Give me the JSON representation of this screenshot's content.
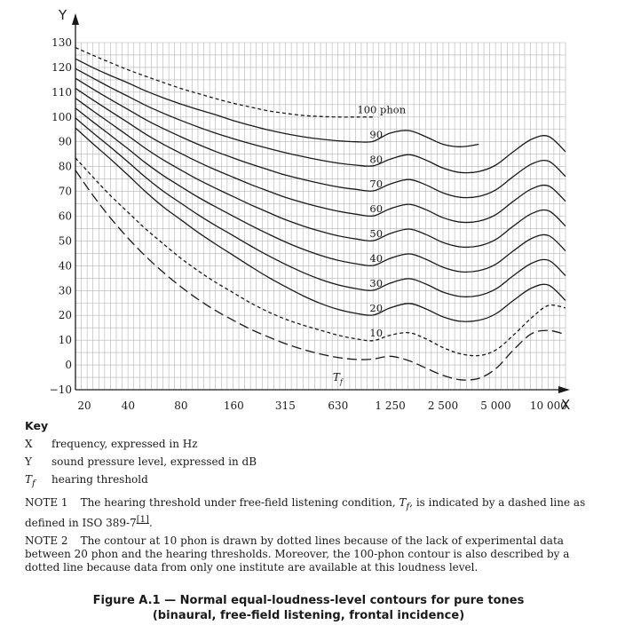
{
  "chart_data": {
    "type": "line",
    "x_axis": {
      "letter": "X",
      "scale": "log",
      "range": [
        20,
        12500
      ],
      "ticks": [
        20,
        40,
        80,
        160,
        315,
        630,
        1250,
        2500,
        5000,
        10000
      ],
      "tick_labels": [
        "20",
        "40",
        "80",
        "160",
        "315",
        "630",
        "1 250",
        "2 500",
        "5 000",
        "10 000"
      ]
    },
    "y_axis": {
      "letter": "Y",
      "range": [
        -10,
        130
      ],
      "ticks": [
        -10,
        0,
        10,
        20,
        30,
        40,
        50,
        60,
        70,
        80,
        90,
        100,
        110,
        120,
        130
      ],
      "tick_labels": [
        "−10",
        "0",
        "10",
        "20",
        "30",
        "40",
        "50",
        "60",
        "70",
        "80",
        "90",
        "100",
        "110",
        "120",
        "130"
      ]
    },
    "grid": true,
    "series": [
      {
        "name": "100 phon",
        "style": "dotted",
        "x": [
          20,
          25,
          31.5,
          40,
          50,
          63,
          80,
          100,
          125,
          160,
          200,
          250,
          315,
          400,
          500,
          630,
          800,
          1000
        ],
        "y": [
          128,
          125,
          122,
          119,
          116.5,
          114,
          111.5,
          109.5,
          107.5,
          105.5,
          104,
          102.5,
          101.5,
          100.6,
          100.2,
          100,
          100,
          100
        ]
      },
      {
        "name": "90",
        "style": "solid",
        "x": [
          20,
          25,
          31.5,
          40,
          50,
          63,
          80,
          100,
          125,
          160,
          200,
          250,
          315,
          400,
          500,
          630,
          800,
          1000,
          1250,
          1600,
          2000,
          2500,
          3150,
          4000
        ],
        "y": [
          123.5,
          120,
          116.8,
          113.7,
          110.6,
          107.8,
          105.2,
          103,
          101,
          98.5,
          96.6,
          94.8,
          93.3,
          92,
          91.1,
          90.4,
          90,
          90.2,
          93.5,
          94.5,
          92,
          89,
          88,
          89
        ]
      },
      {
        "name": "80",
        "style": "solid",
        "x": [
          20,
          25,
          31.5,
          40,
          50,
          63,
          80,
          100,
          125,
          160,
          200,
          250,
          315,
          400,
          500,
          630,
          800,
          1000,
          1250,
          1600,
          2000,
          2500,
          3150,
          4000,
          5000,
          6300,
          8000,
          10000,
          12500
        ],
        "y": [
          119.5,
          115.8,
          112,
          108.3,
          104.8,
          101.6,
          98.6,
          96,
          93.6,
          91.2,
          89.2,
          87.4,
          85.6,
          84,
          82.6,
          81.4,
          80.6,
          80.3,
          83,
          84.8,
          82.6,
          79.4,
          77.6,
          78,
          80.6,
          86,
          91,
          92.2,
          86
        ]
      },
      {
        "name": "70",
        "style": "solid",
        "x": [
          20,
          25,
          31.5,
          40,
          50,
          63,
          80,
          100,
          125,
          160,
          200,
          250,
          315,
          400,
          500,
          630,
          800,
          1000,
          1250,
          1600,
          2000,
          2500,
          3150,
          4000,
          5000,
          6300,
          8000,
          10000,
          12500
        ],
        "y": [
          115.6,
          111.4,
          107.2,
          103,
          99,
          95.4,
          92,
          89,
          86.2,
          83.4,
          81,
          78.8,
          76.6,
          74.8,
          73.2,
          71.8,
          70.8,
          70.2,
          73,
          74.8,
          72.6,
          69.4,
          67.6,
          68,
          70.6,
          76,
          81,
          82.2,
          76
        ]
      },
      {
        "name": "60",
        "style": "solid",
        "x": [
          20,
          25,
          31.5,
          40,
          50,
          63,
          80,
          100,
          125,
          160,
          200,
          250,
          315,
          400,
          500,
          630,
          800,
          1000,
          1250,
          1600,
          2000,
          2500,
          3150,
          4000,
          5000,
          6300,
          8000,
          10000,
          12500
        ],
        "y": [
          111.6,
          107,
          102.4,
          97.7,
          93.2,
          89.1,
          85.3,
          81.9,
          78.8,
          75.6,
          72.8,
          70.2,
          67.6,
          65.4,
          63.6,
          62,
          60.8,
          60.1,
          63,
          64.8,
          62.6,
          59.4,
          57.6,
          58,
          60.6,
          66,
          71,
          72.2,
          66
        ]
      },
      {
        "name": "50",
        "style": "solid",
        "x": [
          20,
          25,
          31.5,
          40,
          50,
          63,
          80,
          100,
          125,
          160,
          200,
          250,
          315,
          400,
          500,
          630,
          800,
          1000,
          1250,
          1600,
          2000,
          2500,
          3150,
          4000,
          5000,
          6300,
          8000,
          10000,
          12500
        ],
        "y": [
          107.6,
          102.6,
          97.6,
          92.4,
          87.4,
          82.8,
          78.6,
          74.8,
          71.4,
          67.8,
          64.6,
          61.6,
          58.6,
          56,
          53.9,
          52.1,
          50.8,
          50.1,
          53,
          54.8,
          52.6,
          49.4,
          47.6,
          48,
          50.6,
          56,
          61,
          62.2,
          56
        ]
      },
      {
        "name": "40",
        "style": "solid",
        "x": [
          20,
          25,
          31.5,
          40,
          50,
          63,
          80,
          100,
          125,
          160,
          200,
          250,
          315,
          400,
          500,
          630,
          800,
          1000,
          1250,
          1600,
          2000,
          2500,
          3150,
          4000,
          5000,
          6300,
          8000,
          10000,
          12500
        ],
        "y": [
          103.6,
          98.2,
          92.8,
          87.1,
          81.6,
          76.5,
          71.9,
          67.7,
          63.9,
          59.9,
          56.3,
          52.9,
          49.6,
          46.6,
          44.2,
          42.2,
          40.8,
          40.1,
          43,
          44.8,
          42.6,
          39.4,
          37.6,
          38,
          40.6,
          46,
          51,
          52.2,
          46
        ]
      },
      {
        "name": "30",
        "style": "solid",
        "x": [
          20,
          25,
          31.5,
          40,
          50,
          63,
          80,
          100,
          125,
          160,
          200,
          250,
          315,
          400,
          500,
          630,
          800,
          1000,
          1250,
          1600,
          2000,
          2500,
          3150,
          4000,
          5000,
          6300,
          8000,
          10000,
          12500
        ],
        "y": [
          99.6,
          93.8,
          88,
          81.8,
          75.8,
          70.2,
          65.2,
          60.6,
          56.4,
          52,
          48,
          44.2,
          40.6,
          37.2,
          34.5,
          32.3,
          30.8,
          30.1,
          33,
          34.8,
          32.6,
          29.4,
          27.6,
          28,
          30.6,
          36,
          41,
          42.2,
          36
        ]
      },
      {
        "name": "20",
        "style": "solid",
        "x": [
          20,
          25,
          31.5,
          40,
          50,
          63,
          80,
          100,
          125,
          160,
          200,
          250,
          315,
          400,
          500,
          630,
          800,
          1000,
          1250,
          1600,
          2000,
          2500,
          3150,
          4000,
          5000,
          6300,
          8000,
          10000,
          12500
        ],
        "y": [
          95.6,
          89.4,
          83.2,
          76.5,
          70,
          63.9,
          58.5,
          53.5,
          48.9,
          44.1,
          39.7,
          35.5,
          31.6,
          27.8,
          24.8,
          22.4,
          20.8,
          20.1,
          23,
          24.8,
          22.6,
          19.4,
          17.6,
          18,
          20.6,
          26,
          31,
          32.2,
          26
        ]
      },
      {
        "name": "10",
        "style": "dotted",
        "x": [
          20,
          25,
          31.5,
          40,
          50,
          63,
          80,
          100,
          125,
          160,
          200,
          250,
          315,
          400,
          500,
          630,
          800,
          1000,
          1250,
          1600,
          2000,
          2500,
          3150,
          4000,
          5000,
          6300,
          8000,
          10000,
          12500
        ],
        "y": [
          83.5,
          76,
          68.5,
          61.5,
          55,
          49,
          43,
          38,
          33.5,
          29,
          25,
          21.5,
          18.5,
          16,
          14,
          12,
          10.5,
          9.8,
          12,
          13,
          10.5,
          7,
          4.5,
          3.8,
          6,
          12,
          19,
          24,
          23
        ]
      },
      {
        "name": "Tf",
        "style": "dashed",
        "x": [
          20,
          25,
          31.5,
          40,
          50,
          63,
          80,
          100,
          125,
          160,
          200,
          250,
          315,
          400,
          500,
          630,
          800,
          1000,
          1250,
          1600,
          2000,
          2500,
          3150,
          4000,
          5000,
          6300,
          8000,
          10000,
          12500
        ],
        "y": [
          78.5,
          68.7,
          59.5,
          51.1,
          44,
          37.5,
          31.5,
          26.5,
          22.1,
          17.9,
          14.4,
          11.4,
          8.6,
          6.2,
          4.4,
          3,
          2.2,
          2.4,
          3.5,
          1.7,
          -1.3,
          -4.2,
          -6,
          -5.4,
          -1.5,
          6,
          12.6,
          13.9,
          12.3
        ]
      }
    ],
    "curve_labels": [
      {
        "text": "100 phon",
        "x": 1000,
        "y": 103
      },
      {
        "text": "90",
        "x": 1000,
        "y": 93
      },
      {
        "text": "80",
        "x": 1000,
        "y": 83
      },
      {
        "text": "70",
        "x": 1000,
        "y": 73
      },
      {
        "text": "60",
        "x": 1000,
        "y": 63
      },
      {
        "text": "50",
        "x": 1000,
        "y": 53
      },
      {
        "text": "40",
        "x": 1000,
        "y": 43
      },
      {
        "text": "30",
        "x": 1000,
        "y": 33
      },
      {
        "text": "20",
        "x": 1000,
        "y": 23
      },
      {
        "text": "10",
        "x": 1000,
        "y": 13
      }
    ],
    "threshold_label": {
      "text": "T",
      "subscript": "f",
      "x": 630,
      "y": -5
    }
  },
  "key": {
    "title": "Key",
    "items": [
      {
        "symbol": "X",
        "desc": "frequency, expressed in Hz"
      },
      {
        "symbol": "Y",
        "desc": "sound pressure level, expressed in dB"
      },
      {
        "symbol": "T",
        "sub": "f",
        "desc": "hearing threshold"
      }
    ]
  },
  "notes": [
    {
      "label": "NOTE 1",
      "text_before": "The hearing threshold under free-field listening condition, ",
      "sym": "T",
      "sub": "f",
      "text_after": ", is indicated by a dashed line as defined in ISO 389-7",
      "ref": "[1]",
      "end": "."
    },
    {
      "label": "NOTE 2",
      "text": "The contour at 10 phon is drawn by dotted lines because of the lack of experimental data between 20 phon and the hearing thresholds. Moreover, the 100-phon contour is also described by a dotted line because data from only one institute are available at this loudness level."
    }
  ],
  "caption": {
    "line1": "Figure A.1 — Normal equal-loudness-level contours for pure tones",
    "line2": "(binaural, free-field listening, frontal incidence)"
  }
}
